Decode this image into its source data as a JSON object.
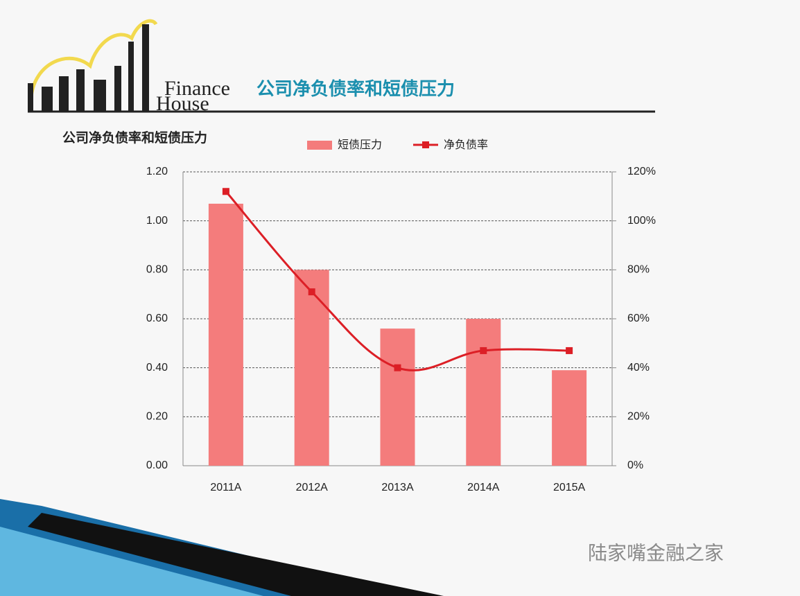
{
  "slide": {
    "title": "公司净负债率和短债压力",
    "logo_line1": "Finance",
    "logo_line2": "House",
    "watermark": "陆家嘴金融之家"
  },
  "chart_data": {
    "type": "bar-line",
    "title": "公司净负债率和短债压力",
    "categories": [
      "2011A",
      "2012A",
      "2013A",
      "2014A",
      "2015A"
    ],
    "series": [
      {
        "name": "短债压力",
        "type": "bar",
        "color": "#f47c7c",
        "values": [
          1.07,
          0.8,
          0.56,
          0.6,
          0.39
        ]
      },
      {
        "name": "净负债率",
        "type": "line",
        "axis": "y2",
        "color": "#dc1f26",
        "values": [
          112,
          71,
          40,
          47,
          47
        ]
      }
    ],
    "ylim": [
      0,
      1.2
    ],
    "yticks": [
      {
        "value": 0,
        "label": "0.00"
      },
      {
        "value": 0.2,
        "label": "0.20"
      },
      {
        "value": 0.4,
        "label": "0.40"
      },
      {
        "value": 0.6,
        "label": "0.60"
      },
      {
        "value": 0.8,
        "label": "0.80"
      },
      {
        "value": 1.0,
        "label": "1.00"
      },
      {
        "value": 1.2,
        "label": "1.20"
      }
    ],
    "y2lim": [
      0,
      120
    ],
    "y2ticks": [
      {
        "value": 0,
        "label": "0%"
      },
      {
        "value": 20,
        "label": "20%"
      },
      {
        "value": 40,
        "label": "40%"
      },
      {
        "value": 60,
        "label": "60%"
      },
      {
        "value": 80,
        "label": "80%"
      },
      {
        "value": 100,
        "label": "100%"
      },
      {
        "value": 120,
        "label": "120%"
      }
    ],
    "grid": true,
    "legend": "top"
  }
}
